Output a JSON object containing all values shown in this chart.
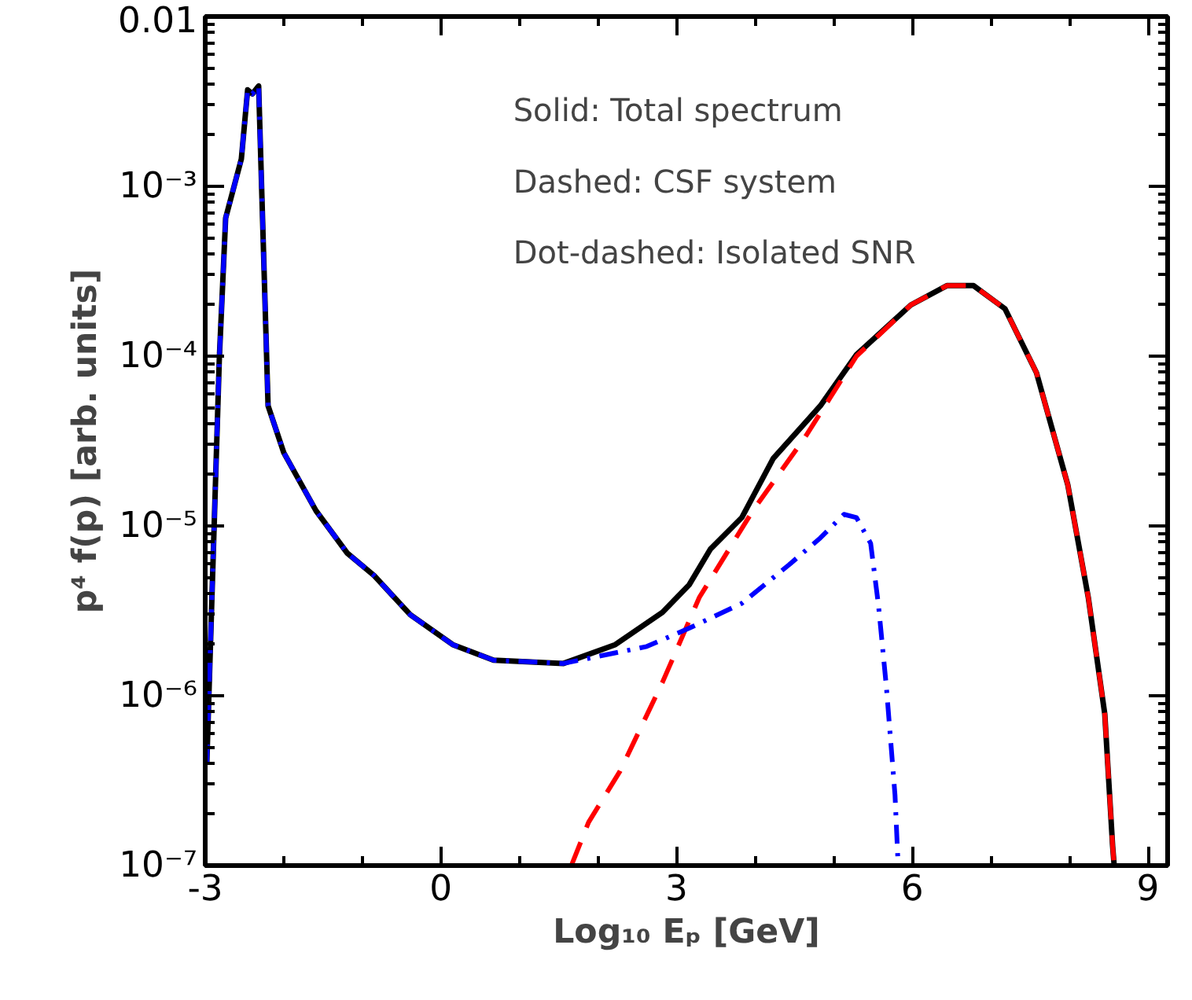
{
  "chart_data": {
    "type": "line",
    "xlabel": "Log₁₀ Eₚ [GeV]",
    "ylabel": "p⁴ f(p) [arb. units]",
    "log": "y",
    "grid": false,
    "xlim": [
      -3,
      9.25
    ],
    "ylim": [
      1e-07,
      0.01
    ],
    "xticks": [
      -3,
      0,
      3,
      6,
      9
    ],
    "yticks": [
      {
        "value": 1e-07,
        "label": "10⁻⁷"
      },
      {
        "value": 1e-06,
        "label": "10⁻⁶"
      },
      {
        "value": 1e-05,
        "label": "10⁻⁵"
      },
      {
        "value": 0.0001,
        "label": "10⁻⁴"
      },
      {
        "value": 0.001,
        "label": "10⁻³"
      },
      0.01
    ],
    "annotations": [
      "Solid: Total spectrum",
      "Dashed: CSF system",
      "Dot-dashed: Isolated SNR"
    ],
    "series": [
      {
        "color": "#000000",
        "line_style": "solid",
        "x": [
          -2.98,
          -2.82,
          -2.74,
          -2.54,
          -2.46,
          -2.4,
          -2.32,
          -2.2,
          -2.0,
          -1.59,
          -1.19,
          -0.85,
          -0.39,
          0.15,
          0.67,
          1.56,
          2.22,
          2.82,
          3.16,
          3.43,
          3.83,
          4.23,
          4.83,
          5.29,
          5.98,
          6.44,
          6.78,
          7.18,
          7.58,
          7.98,
          8.24,
          8.45,
          8.55,
          8.57
        ],
        "values": [
          4e-07,
          9.8e-05,
          0.00065,
          0.00145,
          0.0037,
          0.0035,
          0.0039,
          5.1e-05,
          2.7e-05,
          1.23e-05,
          6.9e-06,
          5.1e-06,
          3e-06,
          2e-06,
          1.62e-06,
          1.55e-06,
          2e-06,
          3.1e-06,
          4.5e-06,
          7.3e-06,
          1.12e-05,
          2.5e-05,
          5.1e-05,
          0.000102,
          0.0002,
          0.00026,
          0.00026,
          0.00019,
          8e-05,
          1.74e-05,
          3.8e-06,
          7.8e-07,
          1.3e-07,
          1e-07
        ]
      },
      {
        "color": "#ff0000",
        "line_style": "dashed",
        "x": [
          1.66,
          1.88,
          2.28,
          2.82,
          3.29,
          3.97,
          4.63,
          5.29,
          5.98,
          6.44,
          6.78,
          7.18,
          7.58,
          7.98,
          8.24,
          8.45,
          8.55,
          8.57
        ],
        "values": [
          1e-07,
          1.8e-07,
          3.6e-07,
          1.2e-06,
          3.8e-06,
          1.23e-05,
          3.3e-05,
          0.0001,
          0.0002,
          0.00026,
          0.00026,
          0.00019,
          8e-05,
          1.74e-05,
          3.8e-06,
          7.8e-07,
          1.3e-07,
          1e-07
        ]
      },
      {
        "color": "#0000ff",
        "line_style": "dashdot",
        "x": [
          -2.98,
          -2.82,
          -2.74,
          -2.54,
          -2.46,
          -2.4,
          -2.32,
          -2.2,
          -2.0,
          -1.59,
          -1.19,
          -0.85,
          -0.39,
          0.15,
          0.67,
          1.56,
          2.62,
          3.16,
          3.83,
          4.43,
          4.83,
          5.13,
          5.29,
          5.47,
          5.57,
          5.67,
          5.78,
          5.82
        ],
        "values": [
          4e-07,
          9.8e-05,
          0.00065,
          0.00145,
          0.0037,
          0.0035,
          0.0039,
          5.1e-05,
          2.7e-05,
          1.23e-05,
          6.9e-06,
          5.1e-06,
          3e-06,
          2e-06,
          1.62e-06,
          1.55e-06,
          1.95e-06,
          2.5e-06,
          3.5e-06,
          5.9e-06,
          8.5e-06,
          1.17e-05,
          1.12e-05,
          7.9e-06,
          3.4e-06,
          1.13e-06,
          2.6e-07,
          1e-07
        ]
      }
    ]
  }
}
